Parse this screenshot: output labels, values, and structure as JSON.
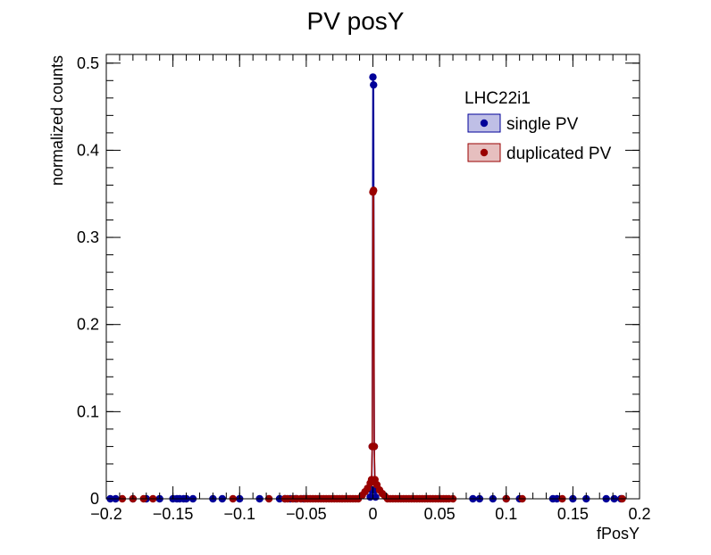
{
  "chart_data": {
    "type": "scatter",
    "title": "PV posY",
    "xlabel": "fPosY",
    "ylabel": "normalized counts",
    "xlim": [
      -0.2,
      0.2
    ],
    "ylim": [
      0,
      0.51
    ],
    "xticks": [
      -0.2,
      -0.15,
      -0.1,
      -0.05,
      0,
      0.05,
      0.1,
      0.15,
      0.2
    ],
    "xtick_labels": [
      "−0.2",
      "−0.15",
      "−0.1",
      "−0.05",
      "0",
      "0.05",
      "0.1",
      "0.15",
      "0.2"
    ],
    "yticks": [
      0,
      0.1,
      0.2,
      0.3,
      0.4,
      0.5
    ],
    "ytick_labels": [
      "0",
      "0.1",
      "0.2",
      "0.3",
      "0.4",
      "0.5"
    ],
    "grid": false,
    "legend": {
      "title": "LHC22i1",
      "placement": "top-right"
    },
    "series": [
      {
        "name": "single PV",
        "color": "#000099",
        "fill": "#bfbfe6",
        "peak": [
          {
            "x": -0.002,
            "y": 0.002
          },
          {
            "x": -0.001,
            "y": 0.01
          },
          {
            "x": -0.0005,
            "y": 0.06
          },
          {
            "x": 0.0,
            "y": 0.484
          },
          {
            "x": 0.0005,
            "y": 0.475
          },
          {
            "x": 0.001,
            "y": 0.06
          },
          {
            "x": 0.0015,
            "y": 0.01
          },
          {
            "x": 0.002,
            "y": 0.002
          }
        ],
        "zero_points_x": [
          -0.197,
          -0.193,
          -0.18,
          -0.17,
          -0.16,
          -0.15,
          -0.147,
          -0.145,
          -0.142,
          -0.14,
          -0.135,
          -0.12,
          -0.113,
          -0.1,
          -0.085,
          -0.07,
          -0.066,
          -0.062,
          -0.058,
          -0.052,
          0.075,
          0.08,
          0.09,
          0.1,
          0.11,
          0.135,
          0.138,
          0.15,
          0.16,
          0.175,
          0.181,
          0.186
        ]
      },
      {
        "name": "duplicated PV",
        "color": "#990000",
        "fill": "#e6bfbf",
        "peak": [
          {
            "x": -0.008,
            "y": 0.004
          },
          {
            "x": -0.006,
            "y": 0.008
          },
          {
            "x": -0.004,
            "y": 0.012
          },
          {
            "x": -0.002,
            "y": 0.018
          },
          {
            "x": -0.001,
            "y": 0.022
          },
          {
            "x": -0.0005,
            "y": 0.06
          },
          {
            "x": 0.0,
            "y": 0.352
          },
          {
            "x": 0.0005,
            "y": 0.354
          },
          {
            "x": 0.001,
            "y": 0.06
          },
          {
            "x": 0.0015,
            "y": 0.022
          },
          {
            "x": 0.003,
            "y": 0.016
          },
          {
            "x": 0.005,
            "y": 0.01
          },
          {
            "x": 0.007,
            "y": 0.006
          },
          {
            "x": 0.009,
            "y": 0.003
          }
        ],
        "zero_points_x": [
          -0.188,
          -0.18,
          -0.172,
          -0.165,
          -0.105,
          -0.078,
          -0.066,
          -0.064,
          -0.06,
          -0.057,
          -0.054,
          -0.051,
          -0.049,
          -0.047,
          -0.045,
          -0.043,
          -0.041,
          -0.039,
          -0.037,
          -0.035,
          -0.033,
          -0.031,
          -0.029,
          -0.027,
          -0.025,
          -0.023,
          -0.021,
          -0.019,
          -0.017,
          -0.015,
          -0.013,
          -0.011,
          0.011,
          0.013,
          0.015,
          0.017,
          0.019,
          0.021,
          0.023,
          0.025,
          0.027,
          0.029,
          0.031,
          0.033,
          0.035,
          0.037,
          0.039,
          0.041,
          0.043,
          0.045,
          0.047,
          0.049,
          0.051,
          0.053,
          0.055,
          0.057,
          0.06,
          0.1,
          0.112,
          0.142,
          0.187
        ]
      }
    ]
  }
}
